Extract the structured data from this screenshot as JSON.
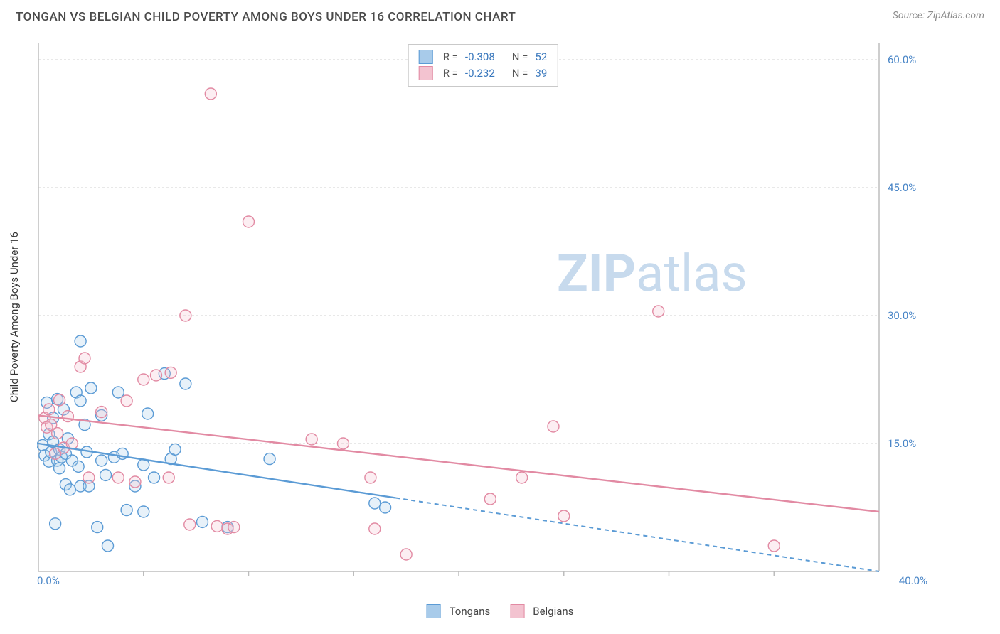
{
  "title": "TONGAN VS BELGIAN CHILD POVERTY AMONG BOYS UNDER 16 CORRELATION CHART",
  "source": "Source: ZipAtlas.com",
  "y_axis_label": "Child Poverty Among Boys Under 16",
  "watermark": {
    "bold": "ZIP",
    "light": "atlas"
  },
  "chart": {
    "type": "scatter",
    "xlim": [
      0,
      40
    ],
    "ylim": [
      0,
      62
    ],
    "x_ticks": [
      0,
      40
    ],
    "x_tick_labels": [
      "0.0%",
      "40.0%"
    ],
    "x_minor_ticks": [
      5,
      10,
      15,
      20,
      25,
      30,
      35
    ],
    "y_gridlines": [
      15,
      30,
      45,
      60
    ],
    "y_tick_labels": [
      "15.0%",
      "30.0%",
      "45.0%",
      "60.0%"
    ],
    "background_color": "#ffffff",
    "grid_color": "#d0d0d0",
    "axis_color": "#bdbdbd",
    "tick_label_color": "#4a86c7",
    "marker_radius": 8,
    "series": [
      {
        "name": "Tongans",
        "color_stroke": "#5b9bd5",
        "color_fill": "#a8cbea",
        "R": "-0.308",
        "N": "52",
        "trend": {
          "y0": 15.0,
          "y40": 0.0,
          "x_solid_end": 17
        },
        "points": [
          [
            0.2,
            14.8
          ],
          [
            0.3,
            13.6
          ],
          [
            0.4,
            19.8
          ],
          [
            0.5,
            12.9
          ],
          [
            0.5,
            16.1
          ],
          [
            0.6,
            14.0
          ],
          [
            0.7,
            15.2
          ],
          [
            0.7,
            18.0
          ],
          [
            0.8,
            5.6
          ],
          [
            0.9,
            13.0
          ],
          [
            0.9,
            20.2
          ],
          [
            1.0,
            14.3
          ],
          [
            1.0,
            12.1
          ],
          [
            1.1,
            13.4
          ],
          [
            1.2,
            19.0
          ],
          [
            1.3,
            10.2
          ],
          [
            1.3,
            13.8
          ],
          [
            1.4,
            15.6
          ],
          [
            1.5,
            9.6
          ],
          [
            1.6,
            13.0
          ],
          [
            1.8,
            21.0
          ],
          [
            1.9,
            12.3
          ],
          [
            2.0,
            10.0
          ],
          [
            2.0,
            20.0
          ],
          [
            2.0,
            27.0
          ],
          [
            2.2,
            17.2
          ],
          [
            2.3,
            14.0
          ],
          [
            2.4,
            10.0
          ],
          [
            2.5,
            21.5
          ],
          [
            2.8,
            5.2
          ],
          [
            3.0,
            13.0
          ],
          [
            3.0,
            18.3
          ],
          [
            3.2,
            11.3
          ],
          [
            3.3,
            3.0
          ],
          [
            3.6,
            13.4
          ],
          [
            3.8,
            21.0
          ],
          [
            4.0,
            13.8
          ],
          [
            4.2,
            7.2
          ],
          [
            4.6,
            10.0
          ],
          [
            5.0,
            7.0
          ],
          [
            5.0,
            12.5
          ],
          [
            5.2,
            18.5
          ],
          [
            5.5,
            11.0
          ],
          [
            6.0,
            23.2
          ],
          [
            6.3,
            13.2
          ],
          [
            6.5,
            14.3
          ],
          [
            7.0,
            22.0
          ],
          [
            7.8,
            5.8
          ],
          [
            9.0,
            5.2
          ],
          [
            11.0,
            13.2
          ],
          [
            16.0,
            8.0
          ],
          [
            16.5,
            7.5
          ]
        ]
      },
      {
        "name": "Belgians",
        "color_stroke": "#e28aa3",
        "color_fill": "#f3c3d0",
        "R": "-0.232",
        "N": "39",
        "trend": {
          "y0": 18.3,
          "y40": 7.0,
          "x_solid_end": 40
        },
        "points": [
          [
            0.3,
            18.0
          ],
          [
            0.4,
            16.9
          ],
          [
            0.5,
            19.0
          ],
          [
            0.6,
            17.2
          ],
          [
            0.8,
            13.8
          ],
          [
            0.9,
            16.2
          ],
          [
            1.0,
            20.1
          ],
          [
            1.2,
            14.5
          ],
          [
            1.4,
            18.2
          ],
          [
            1.6,
            15.0
          ],
          [
            2.0,
            24.0
          ],
          [
            2.2,
            25.0
          ],
          [
            2.4,
            11.0
          ],
          [
            3.0,
            18.7
          ],
          [
            3.8,
            11.0
          ],
          [
            4.2,
            20.0
          ],
          [
            4.6,
            10.5
          ],
          [
            5.0,
            22.5
          ],
          [
            5.6,
            23.0
          ],
          [
            6.2,
            11.0
          ],
          [
            6.3,
            23.3
          ],
          [
            7.0,
            30.0
          ],
          [
            7.2,
            5.5
          ],
          [
            8.2,
            56.0
          ],
          [
            8.5,
            5.3
          ],
          [
            9.0,
            5.0
          ],
          [
            9.3,
            5.2
          ],
          [
            10.0,
            41.0
          ],
          [
            13.0,
            15.5
          ],
          [
            14.5,
            15.0
          ],
          [
            15.8,
            11.0
          ],
          [
            16.0,
            5.0
          ],
          [
            17.5,
            2.0
          ],
          [
            21.5,
            8.5
          ],
          [
            23.0,
            11.0
          ],
          [
            24.5,
            17.0
          ],
          [
            25.0,
            6.5
          ],
          [
            29.5,
            30.5
          ],
          [
            35.0,
            3.0
          ]
        ]
      }
    ]
  },
  "stats_box": {
    "rows": [
      {
        "series_idx": 0
      },
      {
        "series_idx": 1
      }
    ],
    "labels": {
      "R": "R =",
      "N": "N ="
    }
  },
  "legend": {
    "items": [
      {
        "series_idx": 0
      },
      {
        "series_idx": 1
      }
    ]
  }
}
